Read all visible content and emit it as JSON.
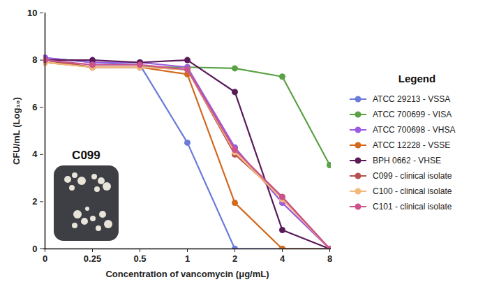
{
  "chart_data": {
    "type": "line",
    "x_label": "Concentration of vancomycin (μg/mL)",
    "y_label": "CFU/mL (Log₁₀)",
    "categories": [
      "0",
      "0.25",
      "0.5",
      "1",
      "2",
      "4",
      "8"
    ],
    "ylim": [
      0,
      10
    ],
    "yticks": [
      0,
      2,
      4,
      6,
      8,
      10
    ],
    "legend_title": "Legend",
    "legend": "right",
    "marker": "circle",
    "annotations": [
      {
        "text": "C099"
      }
    ],
    "series": [
      {
        "name": "ATCC 29213 - VSSA",
        "color": "#6b7bd8",
        "values": [
          8.1,
          7.9,
          7.8,
          4.5,
          0,
          0,
          0
        ]
      },
      {
        "name": "ATCC 700699 - VISA",
        "color": "#5aa145",
        "values": [
          8.0,
          7.7,
          7.7,
          7.7,
          7.65,
          7.3,
          3.55
        ]
      },
      {
        "name": "ATCC 700698 - VHSA",
        "color": "#9b5be0",
        "values": [
          8.1,
          7.9,
          7.9,
          7.7,
          4.3,
          1.95,
          0
        ]
      },
      {
        "name": "ATCC 12228 - VSSE",
        "color": "#d2691e",
        "values": [
          7.9,
          7.7,
          7.7,
          7.4,
          1.95,
          0,
          0
        ]
      },
      {
        "name": "BPH 0662 - VHSE",
        "color": "#5a1a5a",
        "values": [
          8.0,
          8.0,
          7.9,
          8.0,
          6.65,
          0.8,
          0
        ]
      },
      {
        "name": "C099 - clinical isolate",
        "color": "#b5524e",
        "values": [
          8.0,
          7.7,
          7.7,
          7.6,
          4.0,
          2.2,
          0
        ]
      },
      {
        "name": "C100 - clinical isolate",
        "color": "#f2b97a",
        "values": [
          7.9,
          7.7,
          7.7,
          7.6,
          4.1,
          2.1,
          0
        ]
      },
      {
        "name": "C101 - clinical isolate",
        "color": "#c9538a",
        "values": [
          8.0,
          7.8,
          7.8,
          7.6,
          4.2,
          2.2,
          0
        ]
      }
    ]
  }
}
